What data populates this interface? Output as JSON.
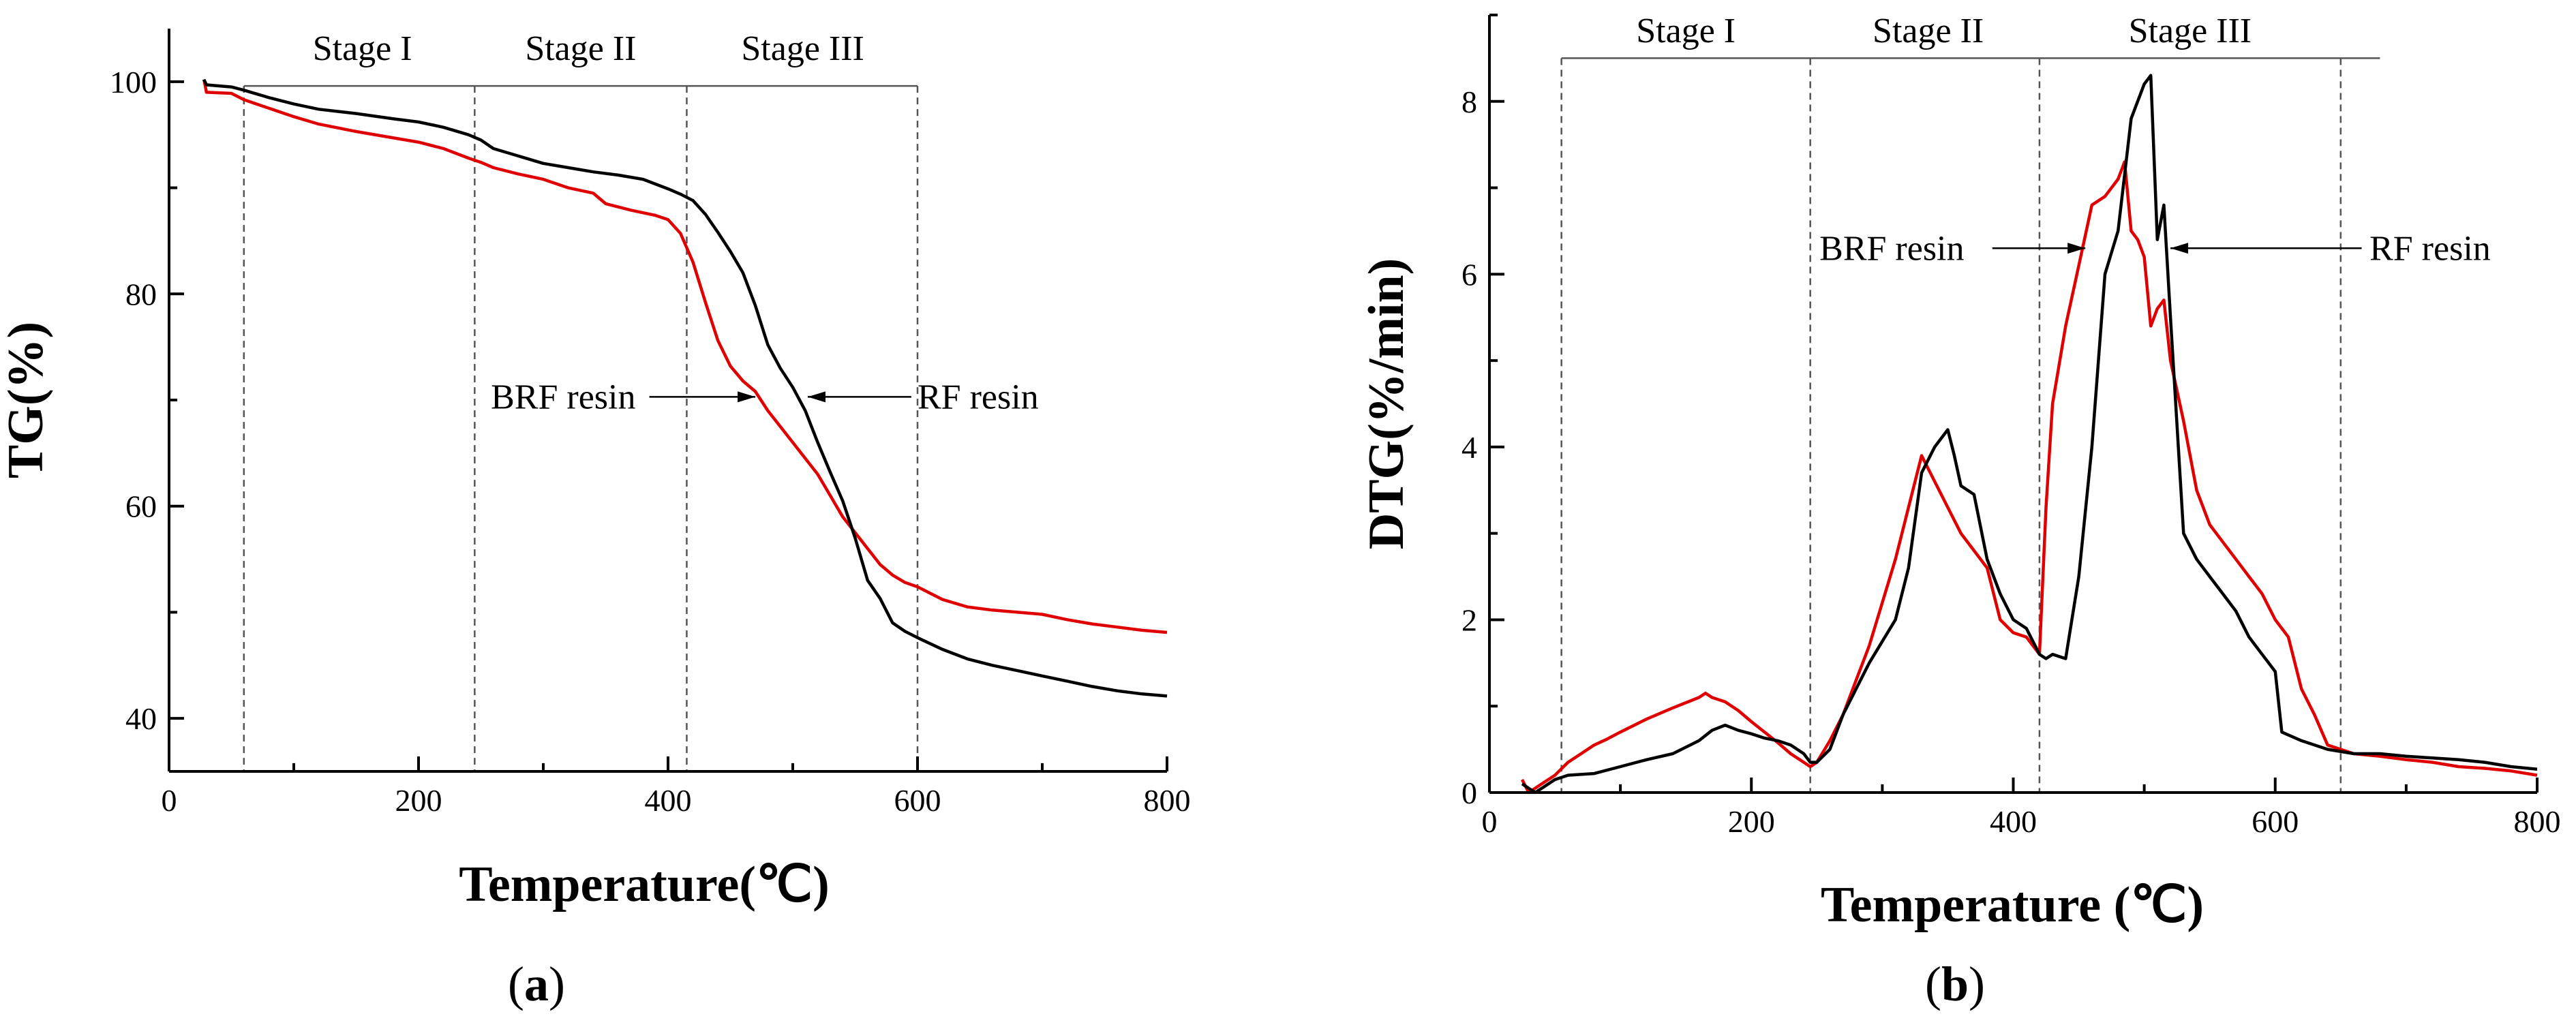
{
  "figure": {
    "panel_labels": [
      {
        "open": "(",
        "letter": "a",
        "close": ")"
      },
      {
        "open": "(",
        "letter": "b",
        "close": ")"
      }
    ]
  },
  "colors": {
    "rf": "#000000",
    "brf": "#e00000"
  },
  "chart_data": [
    {
      "type": "line",
      "xlabel": "Temperature(℃)",
      "ylabel": "TG(%)",
      "xlim": [
        0,
        800
      ],
      "ylim": [
        35,
        105
      ],
      "xticks": [
        0,
        200,
        400,
        600,
        800
      ],
      "yticks": [
        40,
        60,
        80,
        100
      ],
      "xtick_labels": [
        "0",
        "200",
        "400",
        "600",
        "800"
      ],
      "ytick_labels": [
        "40",
        "60",
        "80",
        "100"
      ],
      "stage_bar_y": 99.6,
      "stage_bar_range": [
        60,
        600
      ],
      "stage_dividers": [
        60,
        245,
        415,
        600
      ],
      "stages": [
        {
          "label": "Stage I",
          "x": 155
        },
        {
          "label": "Stage II",
          "x": 330
        },
        {
          "label": "Stage III",
          "x": 508
        }
      ],
      "annotations": [
        {
          "text": "BRF resin",
          "label_x": 258,
          "y": 70.3,
          "arrow_from": 385,
          "arrow_to": 470,
          "anchor": "start"
        },
        {
          "text": "RF resin",
          "label_x": 600,
          "y": 70.3,
          "arrow_from": 595,
          "arrow_to": 512,
          "anchor": "start"
        }
      ],
      "series": [
        {
          "name": "RF resin",
          "color": "#000000",
          "x": [
            28,
            30,
            50,
            60,
            80,
            100,
            120,
            150,
            180,
            200,
            220,
            240,
            250,
            260,
            280,
            300,
            320,
            340,
            360,
            380,
            400,
            410,
            420,
            430,
            440,
            450,
            460,
            470,
            480,
            490,
            500,
            510,
            520,
            530,
            540,
            550,
            560,
            570,
            580,
            590,
            600,
            620,
            640,
            660,
            680,
            700,
            720,
            740,
            760,
            780,
            800
          ],
          "values": [
            100.2,
            99.7,
            99.5,
            99.2,
            98.5,
            97.9,
            97.4,
            97.0,
            96.5,
            96.2,
            95.7,
            95.0,
            94.5,
            93.7,
            93.0,
            92.3,
            91.9,
            91.5,
            91.2,
            90.8,
            89.9,
            89.4,
            88.8,
            87.5,
            85.8,
            84.0,
            82.0,
            78.9,
            75.2,
            73.0,
            71.2,
            69.0,
            66.0,
            63.2,
            60.5,
            57.0,
            53.0,
            51.3,
            49.0,
            48.2,
            47.6,
            46.5,
            45.6,
            45.0,
            44.5,
            44.0,
            43.5,
            43.0,
            42.6,
            42.3,
            42.1
          ]
        },
        {
          "name": "BRF resin",
          "color": "#e00000",
          "x": [
            28,
            30,
            50,
            60,
            80,
            100,
            120,
            150,
            180,
            200,
            220,
            240,
            250,
            260,
            280,
            300,
            320,
            340,
            350,
            370,
            390,
            400,
            410,
            420,
            430,
            440,
            450,
            460,
            470,
            480,
            490,
            500,
            510,
            520,
            530,
            540,
            550,
            560,
            570,
            580,
            590,
            600,
            620,
            640,
            660,
            680,
            700,
            720,
            740,
            760,
            780,
            800
          ],
          "values": [
            100.2,
            99.0,
            98.9,
            98.3,
            97.5,
            96.7,
            96.0,
            95.3,
            94.7,
            94.3,
            93.7,
            92.8,
            92.4,
            91.9,
            91.3,
            90.8,
            90.0,
            89.5,
            88.5,
            87.9,
            87.4,
            87.0,
            85.7,
            83.0,
            79.2,
            75.6,
            73.2,
            71.8,
            70.8,
            69.0,
            67.5,
            66.0,
            64.5,
            63.0,
            61.0,
            59.0,
            57.5,
            56.0,
            54.5,
            53.5,
            52.8,
            52.4,
            51.2,
            50.5,
            50.2,
            50.0,
            49.8,
            49.3,
            48.9,
            48.6,
            48.3,
            48.1
          ]
        }
      ]
    },
    {
      "type": "line",
      "xlabel": "Temperature (℃)",
      "ylabel": "DTG(%/min)",
      "xlim": [
        0,
        800
      ],
      "ylim": [
        0,
        9
      ],
      "xticks": [
        0,
        200,
        400,
        600,
        800
      ],
      "yticks": [
        0,
        2,
        4,
        6,
        8
      ],
      "xtick_labels": [
        "0",
        "200",
        "400",
        "600",
        "800"
      ],
      "ytick_labels": [
        "0",
        "2",
        "4",
        "6",
        "8"
      ],
      "stage_bar_y": 8.5,
      "stage_bar_range": [
        55,
        680
      ],
      "stage_dividers": [
        55,
        245,
        420,
        650
      ],
      "stages": [
        {
          "label": "Stage I",
          "x": 150
        },
        {
          "label": "Stage II",
          "x": 335
        },
        {
          "label": "Stage III",
          "x": 535
        }
      ],
      "annotations": [
        {
          "text": "BRF resin",
          "label_x": 252,
          "y": 6.3,
          "arrow_from": 384,
          "arrow_to": 455,
          "anchor": "start"
        },
        {
          "text": "RF resin",
          "label_x": 672,
          "y": 6.3,
          "arrow_from": 666,
          "arrow_to": 520,
          "anchor": "start"
        }
      ],
      "series": [
        {
          "name": "RF resin",
          "color": "#000000",
          "x": [
            25,
            30,
            35,
            40,
            50,
            60,
            80,
            100,
            120,
            140,
            160,
            170,
            180,
            190,
            200,
            210,
            220,
            230,
            240,
            245,
            250,
            260,
            270,
            280,
            290,
            300,
            310,
            320,
            330,
            340,
            350,
            355,
            360,
            370,
            380,
            390,
            400,
            410,
            420,
            425,
            430,
            440,
            450,
            460,
            470,
            480,
            490,
            500,
            505,
            510,
            515,
            520,
            530,
            540,
            550,
            560,
            570,
            580,
            590,
            600,
            605,
            620,
            640,
            660,
            680,
            700,
            720,
            740,
            760,
            780,
            800
          ],
          "values": [
            0.1,
            0.05,
            0.0,
            0.05,
            0.15,
            0.2,
            0.22,
            0.3,
            0.38,
            0.45,
            0.6,
            0.72,
            0.78,
            0.72,
            0.68,
            0.63,
            0.6,
            0.55,
            0.45,
            0.35,
            0.35,
            0.5,
            0.9,
            1.2,
            1.5,
            1.75,
            2.0,
            2.6,
            3.7,
            4.0,
            4.2,
            3.9,
            3.55,
            3.45,
            2.7,
            2.3,
            2.0,
            1.9,
            1.6,
            1.55,
            1.6,
            1.55,
            2.5,
            4.0,
            6.0,
            6.5,
            7.8,
            8.2,
            8.3,
            6.4,
            6.8,
            5.5,
            3.0,
            2.7,
            2.5,
            2.3,
            2.1,
            1.8,
            1.6,
            1.4,
            0.7,
            0.6,
            0.5,
            0.45,
            0.45,
            0.42,
            0.4,
            0.38,
            0.35,
            0.3,
            0.27
          ]
        },
        {
          "name": "BRF resin",
          "color": "#e00000",
          "x": [
            25,
            30,
            40,
            50,
            60,
            70,
            80,
            90,
            100,
            120,
            140,
            160,
            165,
            170,
            180,
            190,
            200,
            210,
            220,
            230,
            240,
            245,
            250,
            260,
            270,
            280,
            290,
            300,
            310,
            320,
            330,
            340,
            350,
            360,
            370,
            380,
            390,
            400,
            410,
            415,
            420,
            425,
            430,
            440,
            450,
            460,
            470,
            480,
            485,
            490,
            495,
            500,
            505,
            510,
            515,
            520,
            530,
            540,
            550,
            560,
            570,
            580,
            590,
            600,
            610,
            620,
            630,
            640,
            650,
            660,
            680,
            700,
            720,
            740,
            760,
            780,
            800
          ],
          "values": [
            0.15,
            0.0,
            0.1,
            0.2,
            0.35,
            0.45,
            0.55,
            0.62,
            0.7,
            0.85,
            0.98,
            1.1,
            1.15,
            1.1,
            1.05,
            0.95,
            0.82,
            0.7,
            0.58,
            0.45,
            0.35,
            0.3,
            0.35,
            0.6,
            0.9,
            1.3,
            1.7,
            2.2,
            2.7,
            3.3,
            3.9,
            3.6,
            3.3,
            3.0,
            2.8,
            2.6,
            2.0,
            1.85,
            1.8,
            1.7,
            1.6,
            3.3,
            4.5,
            5.4,
            6.1,
            6.8,
            6.9,
            7.1,
            7.3,
            6.5,
            6.4,
            6.2,
            5.4,
            5.6,
            5.7,
            5.0,
            4.3,
            3.5,
            3.1,
            2.9,
            2.7,
            2.5,
            2.3,
            2.0,
            1.8,
            1.2,
            0.9,
            0.55,
            0.5,
            0.45,
            0.42,
            0.38,
            0.35,
            0.3,
            0.28,
            0.25,
            0.2
          ]
        }
      ]
    }
  ]
}
